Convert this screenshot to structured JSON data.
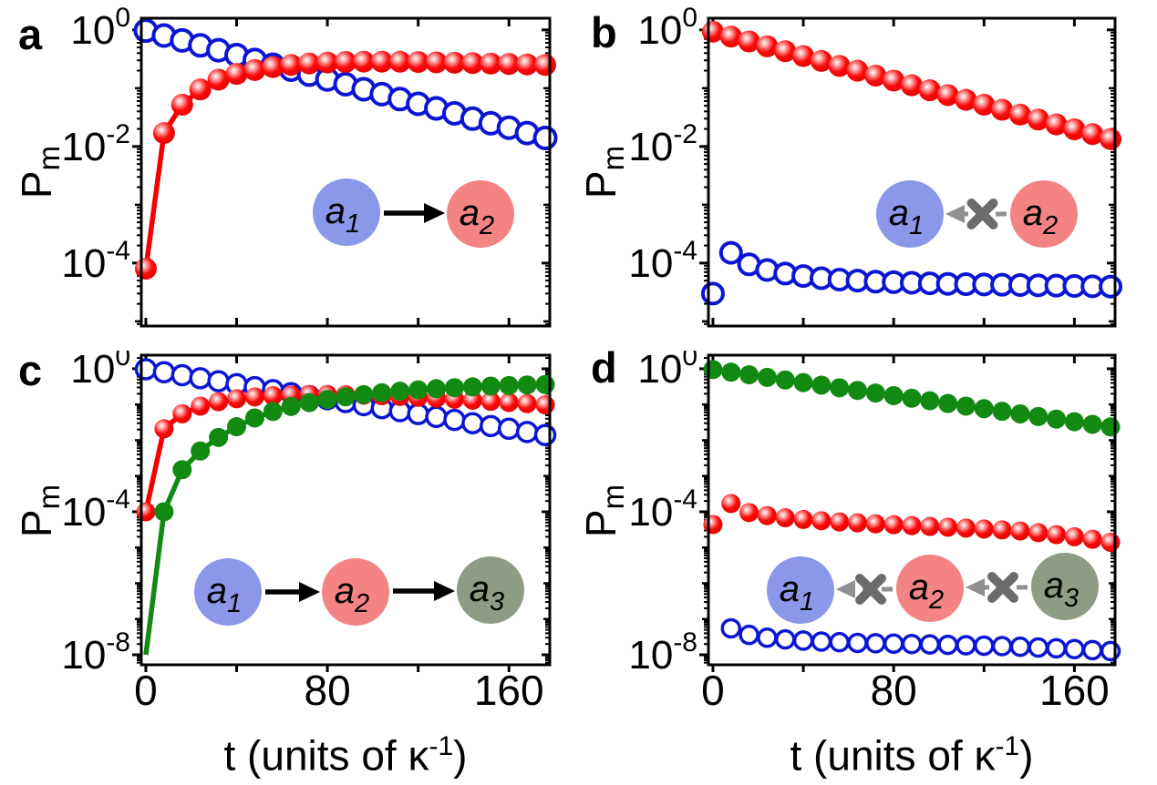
{
  "figure": {
    "background": "#ffffff",
    "axis_color": "#000000",
    "series_colors": {
      "a1_blue": "#0b16d4",
      "a2_red": "#f50000",
      "a3_green": "#128a12"
    }
  },
  "chart_data": [
    {
      "panel_label": "a",
      "type": "scatter",
      "ylog": true,
      "ylabel": {
        "base": "P",
        "sub": "m"
      },
      "xlim": [
        -2,
        178
      ],
      "ylim_exp": [
        0.2,
        -5.08
      ],
      "xticks": [
        {
          "v": 0,
          "label": "0"
        },
        {
          "v": 40
        },
        {
          "v": 80,
          "label": "80"
        },
        {
          "v": 120
        },
        {
          "v": 160,
          "label": "160"
        }
      ],
      "show_x_tick_labels": false,
      "ytick_exponents": [
        0,
        -2,
        -4
      ],
      "t": [
        0,
        8,
        16,
        24,
        32,
        40,
        48,
        56,
        64,
        72,
        80,
        88,
        96,
        104,
        112,
        120,
        128,
        136,
        144,
        152,
        160,
        168,
        176
      ],
      "series": [
        {
          "id": "a1",
          "marker": "open-circle",
          "color": "#0b16d4",
          "line": true,
          "y": [
            0.97,
            0.8,
            0.66,
            0.543,
            0.448,
            0.37,
            0.305,
            0.252,
            0.208,
            0.171,
            0.141,
            0.117,
            0.096,
            0.079,
            0.065,
            0.054,
            0.045,
            0.037,
            0.03,
            0.025,
            0.021,
            0.017,
            0.014
          ]
        },
        {
          "id": "a2",
          "marker": "sphere",
          "color": "#f50000",
          "line": true,
          "y": [
            8e-05,
            0.017,
            0.052,
            0.095,
            0.14,
            0.176,
            0.205,
            0.23,
            0.25,
            0.265,
            0.275,
            0.282,
            0.285,
            0.285,
            0.284,
            0.281,
            0.277,
            0.273,
            0.269,
            0.264,
            0.26,
            0.255,
            0.25
          ]
        }
      ],
      "inset": {
        "nodes": [
          {
            "base": "a",
            "sub": "1",
            "fill": "#8b97e8"
          },
          {
            "base": "a",
            "sub": "2",
            "fill": "#f48484"
          }
        ],
        "links": [
          {
            "from": 0,
            "to": 1,
            "type": "arrow"
          }
        ]
      }
    },
    {
      "panel_label": "b",
      "type": "scatter",
      "ylog": true,
      "ylabel": {
        "base": "P",
        "sub": "m"
      },
      "xlim": [
        -2,
        178
      ],
      "ylim_exp": [
        0.2,
        -5.08
      ],
      "xticks": [
        {
          "v": 0,
          "label": "0"
        },
        {
          "v": 40
        },
        {
          "v": 80,
          "label": "80"
        },
        {
          "v": 120
        },
        {
          "v": 160,
          "label": "160"
        }
      ],
      "show_x_tick_labels": false,
      "ytick_exponents": [
        0,
        -2,
        -4
      ],
      "t": [
        0,
        8,
        16,
        24,
        32,
        40,
        48,
        56,
        64,
        72,
        80,
        88,
        96,
        104,
        112,
        120,
        128,
        136,
        144,
        152,
        160,
        168,
        176
      ],
      "series": [
        {
          "id": "a1",
          "marker": "open-circle",
          "color": "#0b16d4",
          "line": false,
          "y": [
            3e-05,
            0.00015,
            9.5e-05,
            7.6e-05,
            6.6e-05,
            6e-05,
            5.5e-05,
            5.2e-05,
            5e-05,
            4.8e-05,
            4.7e-05,
            4.6e-05,
            4.5e-05,
            4.4e-05,
            4.35e-05,
            4.3e-05,
            4.25e-05,
            4.2e-05,
            4.15e-05,
            4.1e-05,
            4.05e-05,
            4e-05,
            3.95e-05
          ]
        },
        {
          "id": "a2",
          "marker": "sphere",
          "color": "#f50000",
          "line": false,
          "y": [
            0.93,
            0.767,
            0.633,
            0.522,
            0.43,
            0.355,
            0.293,
            0.241,
            0.199,
            0.164,
            0.135,
            0.112,
            0.092,
            0.076,
            0.063,
            0.052,
            0.0426,
            0.0352,
            0.029,
            0.0239,
            0.0197,
            0.0163,
            0.0134
          ]
        }
      ],
      "inset": {
        "nodes": [
          {
            "base": "a",
            "sub": "1",
            "fill": "#8b97e8"
          },
          {
            "base": "a",
            "sub": "2",
            "fill": "#f48484"
          }
        ],
        "links": [
          {
            "from": 1,
            "to": 0,
            "type": "blocked"
          }
        ]
      }
    },
    {
      "panel_label": "c",
      "type": "scatter",
      "ylog": true,
      "ylabel": {
        "base": "P",
        "sub": "m"
      },
      "xlabel": {
        "pre": "t (units of ",
        "kappa": "κ",
        "sup": "-1",
        "post": ")"
      },
      "xlim": [
        -2,
        178
      ],
      "ylim_exp": [
        0.38,
        -8.28
      ],
      "xticks": [
        {
          "v": 0,
          "label": "0"
        },
        {
          "v": 40
        },
        {
          "v": 80,
          "label": "80"
        },
        {
          "v": 120
        },
        {
          "v": 160,
          "label": "160"
        }
      ],
      "show_x_tick_labels": true,
      "ytick_exponents": [
        0,
        -4,
        -8
      ],
      "t": [
        0,
        8,
        16,
        24,
        32,
        40,
        48,
        56,
        64,
        72,
        80,
        88,
        96,
        104,
        112,
        120,
        128,
        136,
        144,
        152,
        160,
        168,
        176
      ],
      "series": [
        {
          "id": "a1",
          "marker": "open-circle",
          "color": "#0b16d4",
          "line": true,
          "y": [
            0.97,
            0.8,
            0.66,
            0.543,
            0.448,
            0.37,
            0.305,
            0.252,
            0.208,
            0.171,
            0.141,
            0.117,
            0.096,
            0.079,
            0.065,
            0.054,
            0.045,
            0.037,
            0.03,
            0.025,
            0.021,
            0.017,
            0.014
          ]
        },
        {
          "id": "a2",
          "marker": "sphere",
          "color": "#f50000",
          "line": true,
          "y": [
            0.0001,
            0.021,
            0.055,
            0.09,
            0.12,
            0.145,
            0.163,
            0.176,
            0.185,
            0.19,
            0.19,
            0.188,
            0.183,
            0.176,
            0.168,
            0.159,
            0.15,
            0.141,
            0.132,
            0.123,
            0.114,
            0.106,
            0.098
          ]
        },
        {
          "id": "a3",
          "marker": "filled-circle",
          "color": "#128a12",
          "line": true,
          "marker_from": 1,
          "y": [
            1e-08,
            0.0001,
            0.0015,
            0.005,
            0.012,
            0.024,
            0.042,
            0.064,
            0.088,
            0.113,
            0.139,
            0.164,
            0.189,
            0.213,
            0.236,
            0.257,
            0.277,
            0.295,
            0.312,
            0.327,
            0.34,
            0.352,
            0.362
          ]
        }
      ],
      "inset": {
        "nodes": [
          {
            "base": "a",
            "sub": "1",
            "fill": "#8b97e8"
          },
          {
            "base": "a",
            "sub": "2",
            "fill": "#f48484"
          },
          {
            "base": "a",
            "sub": "3",
            "fill": "#8f9c85"
          }
        ],
        "links": [
          {
            "from": 0,
            "to": 1,
            "type": "arrow"
          },
          {
            "from": 1,
            "to": 2,
            "type": "arrow"
          }
        ]
      }
    },
    {
      "panel_label": "d",
      "type": "scatter",
      "ylog": true,
      "ylabel": {
        "base": "P",
        "sub": "m"
      },
      "xlabel": {
        "pre": "t (units of ",
        "kappa": "κ",
        "sup": "-1",
        "post": ")"
      },
      "xlim": [
        -2,
        178
      ],
      "ylim_exp": [
        0.38,
        -8.28
      ],
      "xticks": [
        {
          "v": 0,
          "label": "0"
        },
        {
          "v": 40
        },
        {
          "v": 80,
          "label": "80"
        },
        {
          "v": 120
        },
        {
          "v": 160,
          "label": "160"
        }
      ],
      "show_x_tick_labels": true,
      "ytick_exponents": [
        0,
        -4,
        -8
      ],
      "t": [
        0,
        8,
        16,
        24,
        32,
        40,
        48,
        56,
        64,
        72,
        80,
        88,
        96,
        104,
        112,
        120,
        128,
        136,
        144,
        152,
        160,
        168,
        176
      ],
      "series": [
        {
          "id": "a1",
          "marker": "open-circle",
          "color": "#0b16d4",
          "line": false,
          "x": [
            8,
            16,
            24,
            32,
            40,
            48,
            56,
            64,
            72,
            80,
            88,
            96,
            104,
            112,
            120,
            128,
            136,
            144,
            152,
            160,
            168,
            176
          ],
          "y": [
            5.5e-08,
            3.6e-08,
            3e-08,
            2.7e-08,
            2.5e-08,
            2.35e-08,
            2.25e-08,
            2.15e-08,
            2.1e-08,
            2.05e-08,
            2e-08,
            1.95e-08,
            1.9e-08,
            1.85e-08,
            1.8e-08,
            1.75e-08,
            1.68e-08,
            1.6e-08,
            1.52e-08,
            1.44e-08,
            1.35e-08,
            1.27e-08
          ]
        },
        {
          "id": "a2",
          "marker": "sphere",
          "color": "#f50000",
          "line": false,
          "y": [
            4.4e-05,
            0.00017,
            9.5e-05,
            7.8e-05,
            6.8e-05,
            6.1e-05,
            5.6e-05,
            5.2e-05,
            4.9e-05,
            4.6e-05,
            4.35e-05,
            4.1e-05,
            3.9e-05,
            3.7e-05,
            3.5e-05,
            3.3e-05,
            3.1e-05,
            2.9e-05,
            2.6e-05,
            2.3e-05,
            2e-05,
            1.7e-05,
            1.4e-05
          ]
        },
        {
          "id": "a3",
          "marker": "filled-circle",
          "color": "#128a12",
          "line": false,
          "y": [
            0.95,
            0.803,
            0.679,
            0.574,
            0.485,
            0.41,
            0.347,
            0.293,
            0.248,
            0.209,
            0.177,
            0.15,
            0.127,
            0.107,
            0.09,
            0.0765,
            0.0646,
            0.0546,
            0.0462,
            0.039,
            0.033,
            0.0279,
            0.0236
          ]
        }
      ],
      "inset": {
        "nodes": [
          {
            "base": "a",
            "sub": "1",
            "fill": "#8b97e8"
          },
          {
            "base": "a",
            "sub": "2",
            "fill": "#f48484"
          },
          {
            "base": "a",
            "sub": "3",
            "fill": "#8f9c85"
          }
        ],
        "links": [
          {
            "from": 1,
            "to": 0,
            "type": "blocked"
          },
          {
            "from": 2,
            "to": 1,
            "type": "blocked"
          }
        ]
      }
    }
  ]
}
